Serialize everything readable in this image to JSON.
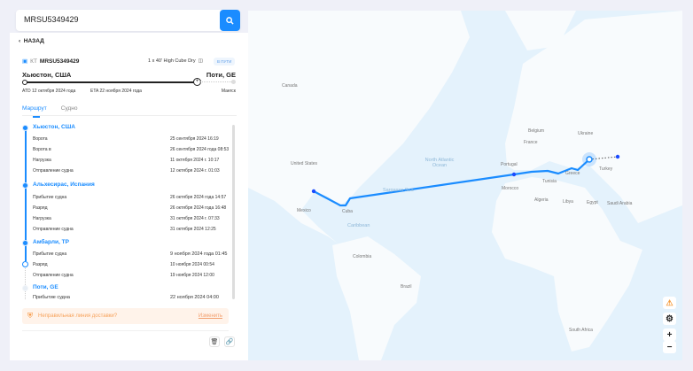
{
  "search": {
    "value": "MRSU5349429"
  },
  "nav": {
    "back_label": "НАЗАД"
  },
  "container": {
    "prefix": "КТ",
    "number": "MRSU5349429",
    "type": "1 x 40' High Cube Dry",
    "status": "В ПУТИ"
  },
  "trip": {
    "from": "Хьюстон, США",
    "to": "Поти, GE",
    "atd": "ATD 12 октября 2024 года",
    "eta": "ETA 22 ноября 2024 года",
    "carrier": "Maerск",
    "progress_percent": 80
  },
  "tabs": [
    {
      "label": "Маршрут",
      "active": true
    },
    {
      "label": "Судно",
      "active": false
    }
  ],
  "route": [
    {
      "port": "Хьюстон, США",
      "events": [
        {
          "name": "Ворота",
          "date": "25 сентября 2024 16:19"
        },
        {
          "name": "Ворота в",
          "date": "26 сентября 2024 года 08:53"
        },
        {
          "name": "Нагрузка",
          "date": "11 октября 2024 г. 10:17"
        },
        {
          "name": "Отправление судна",
          "date": "12 октября 2024 г. 01:03"
        }
      ]
    },
    {
      "port": "Альхесирас, Испания",
      "events": [
        {
          "name": "Прибытие судна",
          "date": "26 октября 2024 года 14:57"
        },
        {
          "name": "Разряд",
          "date": "26 октября 2024 года 16:48"
        },
        {
          "name": "Нагрузка",
          "date": "31 октября 2024 г. 07:33"
        },
        {
          "name": "Отправление судна",
          "date": "31 октября 2024 12:25"
        }
      ]
    },
    {
      "port": "Амбарли, TP",
      "events": [
        {
          "name": "Прибытие судна",
          "date": "9 ноября 2024 года 01:45"
        },
        {
          "name": "Разряд",
          "date": "10 ноября 2024 00:54"
        },
        {
          "name": "Отправление судна",
          "date": "19 ноября 2024 12:00"
        }
      ]
    },
    {
      "port": "Поти, GE",
      "events": [
        {
          "name": "Прибытие судна",
          "date": "22 ноября 2024 04:00"
        }
      ]
    }
  ],
  "warning": {
    "text": "Неправильная линия доставки?",
    "link": "Изменить"
  },
  "map": {
    "labels": [
      "Canada",
      "United States",
      "Mexico",
      "Cuba",
      "North Atlantic Ocean",
      "Sargasso Sea",
      "Caribbean",
      "Portugal",
      "Morocco",
      "France",
      "Belgium",
      "Ukraine",
      "Turkey",
      "Algeria",
      "Libya",
      "Egypt",
      "Saudi Arabia",
      "Colombia",
      "Brazil",
      "South Africa",
      "Tunisia",
      "Greece"
    ],
    "route_color": "#1a8cff"
  }
}
